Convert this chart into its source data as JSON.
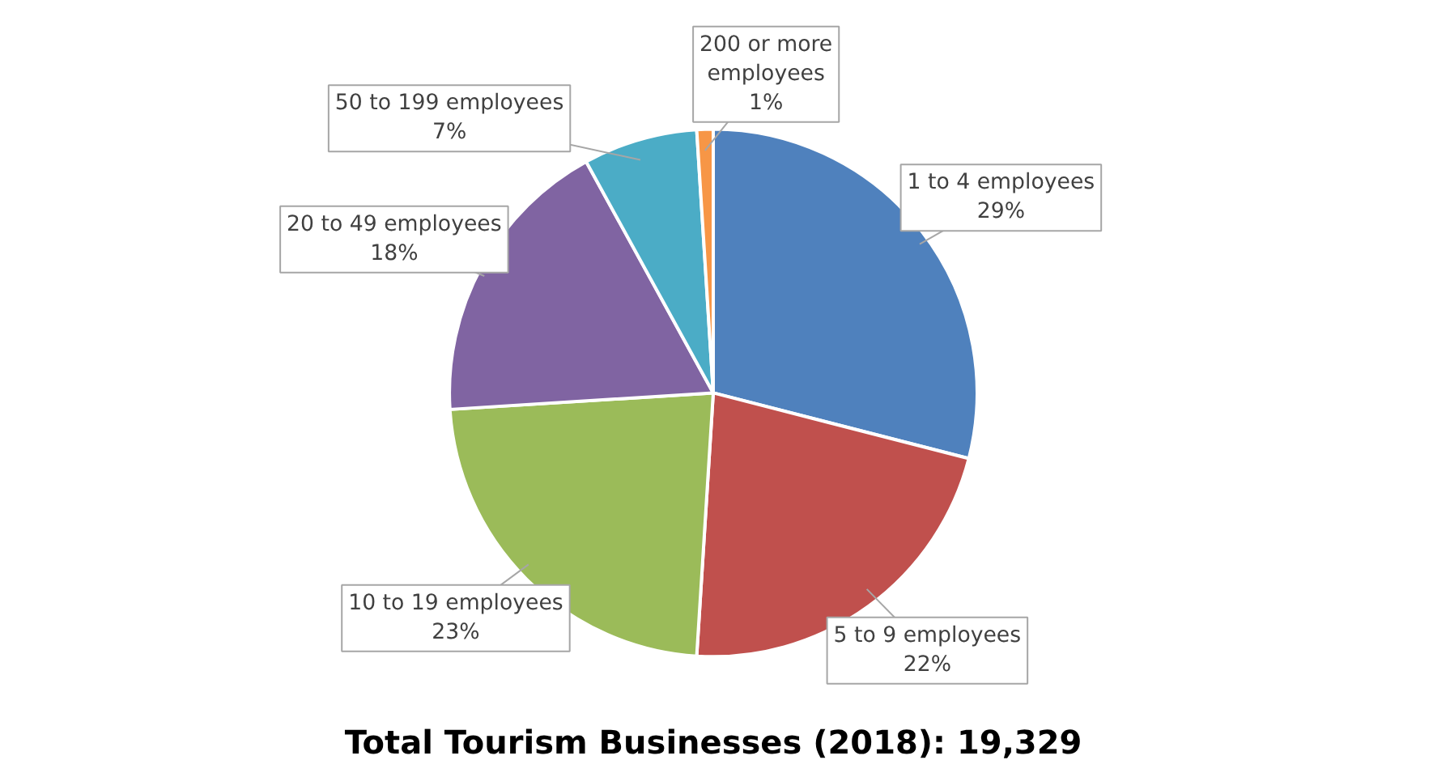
{
  "chart_data": {
    "type": "pie",
    "title": "Total Tourism Businesses (2018): 19,329",
    "categories": [
      "1 to 4 employees",
      "5 to 9 employees",
      "10 to 19 employees",
      "20 to 49 employees",
      "50 to 199 employees",
      "200 or more employees"
    ],
    "values": [
      29,
      22,
      23,
      18,
      7,
      1
    ],
    "value_labels": [
      "29%",
      "22%",
      "23%",
      "18%",
      "7%",
      "1%"
    ],
    "colors": [
      "#4f81bd",
      "#c0504d",
      "#9bbb59",
      "#8064a2",
      "#4bacc6",
      "#f79646"
    ]
  }
}
